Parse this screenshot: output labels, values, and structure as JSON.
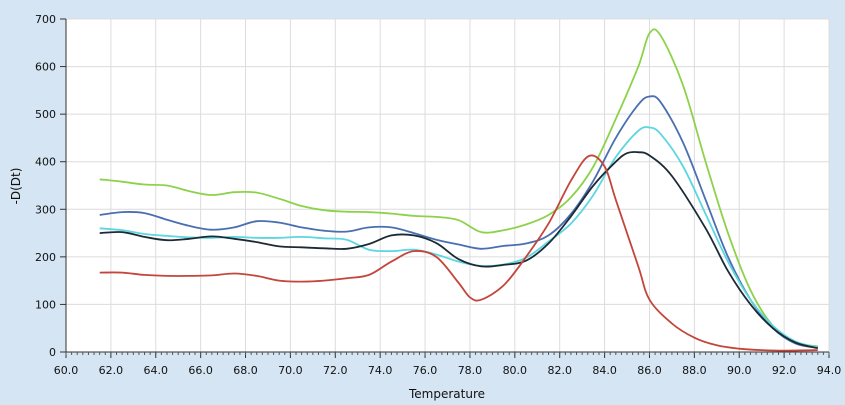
{
  "chart_data": {
    "type": "line",
    "xlabel": "Temperature",
    "ylabel": "-D(Dt)",
    "xlim": [
      60,
      94
    ],
    "ylim": [
      0,
      700
    ],
    "x_ticks": [
      "60.0",
      "62.0",
      "64.0",
      "66.0",
      "68.0",
      "70.0",
      "72.0",
      "74.0",
      "76.0",
      "78.0",
      "80.0",
      "82.0",
      "84.0",
      "86.0",
      "88.0",
      "90.0",
      "92.0",
      "94.0"
    ],
    "y_ticks": [
      "0",
      "100",
      "200",
      "300",
      "400",
      "500",
      "600",
      "700"
    ],
    "grid": true,
    "background": "#d5e5f3",
    "plot_background": "#ffffff",
    "series": [
      {
        "color": "#8cd24a",
        "points": [
          [
            61.5,
            363
          ],
          [
            62.5,
            358
          ],
          [
            63.5,
            352
          ],
          [
            64.5,
            350
          ],
          [
            65.5,
            338
          ],
          [
            66.5,
            330
          ],
          [
            67.5,
            336
          ],
          [
            68.5,
            335
          ],
          [
            69.5,
            322
          ],
          [
            70.5,
            307
          ],
          [
            71.5,
            298
          ],
          [
            72.5,
            295
          ],
          [
            73.5,
            294
          ],
          [
            74.5,
            291
          ],
          [
            75.5,
            286
          ],
          [
            76.5,
            284
          ],
          [
            77.5,
            277
          ],
          [
            78.5,
            252
          ],
          [
            79.5,
            256
          ],
          [
            80.5,
            268
          ],
          [
            81.5,
            288
          ],
          [
            82.5,
            325
          ],
          [
            83.5,
            390
          ],
          [
            84.5,
            490
          ],
          [
            85.5,
            600
          ],
          [
            86.0,
            670
          ],
          [
            86.5,
            665
          ],
          [
            87.5,
            560
          ],
          [
            88.5,
            400
          ],
          [
            89.5,
            250
          ],
          [
            90.5,
            130
          ],
          [
            91.5,
            55
          ],
          [
            92.5,
            20
          ],
          [
            93.5,
            12
          ]
        ]
      },
      {
        "color": "#4a6fb0",
        "points": [
          [
            61.5,
            288
          ],
          [
            62.5,
            294
          ],
          [
            63.5,
            292
          ],
          [
            64.5,
            278
          ],
          [
            65.5,
            265
          ],
          [
            66.5,
            257
          ],
          [
            67.5,
            262
          ],
          [
            68.5,
            275
          ],
          [
            69.5,
            272
          ],
          [
            70.5,
            262
          ],
          [
            71.5,
            255
          ],
          [
            72.5,
            253
          ],
          [
            73.5,
            262
          ],
          [
            74.5,
            262
          ],
          [
            75.5,
            250
          ],
          [
            76.5,
            236
          ],
          [
            77.5,
            226
          ],
          [
            78.5,
            217
          ],
          [
            79.5,
            223
          ],
          [
            80.5,
            228
          ],
          [
            81.5,
            245
          ],
          [
            82.5,
            290
          ],
          [
            83.5,
            360
          ],
          [
            84.5,
            450
          ],
          [
            85.5,
            520
          ],
          [
            86.0,
            537
          ],
          [
            86.5,
            525
          ],
          [
            87.5,
            440
          ],
          [
            88.5,
            320
          ],
          [
            89.5,
            200
          ],
          [
            90.5,
            110
          ],
          [
            91.5,
            50
          ],
          [
            92.5,
            18
          ],
          [
            93.5,
            9
          ]
        ]
      },
      {
        "color": "#5cd6e0",
        "points": [
          [
            61.5,
            260
          ],
          [
            62.5,
            256
          ],
          [
            63.5,
            248
          ],
          [
            64.5,
            244
          ],
          [
            65.5,
            241
          ],
          [
            66.5,
            240
          ],
          [
            67.5,
            242
          ],
          [
            68.5,
            240
          ],
          [
            69.5,
            240
          ],
          [
            70.5,
            242
          ],
          [
            71.5,
            239
          ],
          [
            72.5,
            236
          ],
          [
            73.5,
            215
          ],
          [
            74.5,
            212
          ],
          [
            75.5,
            215
          ],
          [
            76.5,
            205
          ],
          [
            77.5,
            190
          ],
          [
            78.5,
            181
          ],
          [
            79.5,
            184
          ],
          [
            80.5,
            198
          ],
          [
            81.5,
            232
          ],
          [
            82.5,
            270
          ],
          [
            83.5,
            330
          ],
          [
            84.5,
            410
          ],
          [
            85.5,
            465
          ],
          [
            86.0,
            472
          ],
          [
            86.5,
            458
          ],
          [
            87.5,
            390
          ],
          [
            88.5,
            290
          ],
          [
            89.5,
            190
          ],
          [
            90.5,
            110
          ],
          [
            91.5,
            55
          ],
          [
            92.5,
            22
          ],
          [
            93.5,
            10
          ]
        ]
      },
      {
        "color": "#1c2a36",
        "points": [
          [
            61.5,
            250
          ],
          [
            62.5,
            252
          ],
          [
            63.5,
            242
          ],
          [
            64.5,
            235
          ],
          [
            65.5,
            238
          ],
          [
            66.5,
            243
          ],
          [
            67.5,
            238
          ],
          [
            68.5,
            231
          ],
          [
            69.5,
            222
          ],
          [
            70.5,
            220
          ],
          [
            71.5,
            218
          ],
          [
            72.5,
            217
          ],
          [
            73.5,
            227
          ],
          [
            74.5,
            245
          ],
          [
            75.5,
            245
          ],
          [
            76.5,
            229
          ],
          [
            77.5,
            195
          ],
          [
            78.5,
            180
          ],
          [
            79.5,
            183
          ],
          [
            80.5,
            192
          ],
          [
            81.5,
            228
          ],
          [
            82.5,
            285
          ],
          [
            83.5,
            350
          ],
          [
            84.5,
            400
          ],
          [
            85.0,
            418
          ],
          [
            85.5,
            420
          ],
          [
            86.0,
            413
          ],
          [
            87.0,
            370
          ],
          [
            88.5,
            260
          ],
          [
            89.5,
            170
          ],
          [
            90.5,
            100
          ],
          [
            91.5,
            50
          ],
          [
            92.5,
            20
          ],
          [
            93.5,
            8
          ]
        ]
      },
      {
        "color": "#c4453c",
        "points": [
          [
            61.5,
            167
          ],
          [
            62.5,
            167
          ],
          [
            63.5,
            162
          ],
          [
            64.5,
            160
          ],
          [
            65.5,
            160
          ],
          [
            66.5,
            161
          ],
          [
            67.5,
            165
          ],
          [
            68.5,
            160
          ],
          [
            69.5,
            150
          ],
          [
            70.5,
            148
          ],
          [
            71.5,
            150
          ],
          [
            72.5,
            155
          ],
          [
            73.5,
            162
          ],
          [
            74.5,
            190
          ],
          [
            75.5,
            212
          ],
          [
            76.5,
            200
          ],
          [
            77.5,
            145
          ],
          [
            78.0,
            115
          ],
          [
            78.5,
            110
          ],
          [
            79.5,
            140
          ],
          [
            80.5,
            200
          ],
          [
            81.5,
            270
          ],
          [
            82.5,
            360
          ],
          [
            83.3,
            412
          ],
          [
            84.0,
            390
          ],
          [
            84.5,
            320
          ],
          [
            85.5,
            180
          ],
          [
            86.0,
            110
          ],
          [
            87.0,
            60
          ],
          [
            88.0,
            30
          ],
          [
            89.0,
            14
          ],
          [
            90.0,
            7
          ],
          [
            91.0,
            4
          ],
          [
            92.0,
            3
          ],
          [
            93.5,
            4
          ]
        ]
      }
    ]
  }
}
